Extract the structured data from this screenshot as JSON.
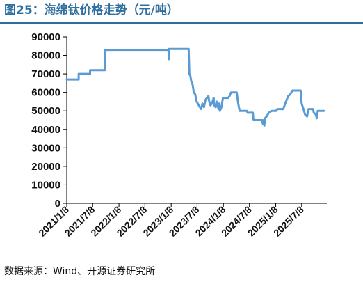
{
  "header": {
    "title": "图25：海绵钛价格走势（元/吨）"
  },
  "footer": {
    "source": "数据来源：Wind、开源证券研究所"
  },
  "colors": {
    "title": "#2f6f9f",
    "series_line": "#5b9bd5",
    "axis": "#000000"
  },
  "chart_data": {
    "type": "line",
    "title": "",
    "xlabel": "",
    "ylabel": "",
    "ylim": [
      0,
      90000
    ],
    "grid": false,
    "legend": "none",
    "y_ticks": [
      0,
      10000,
      20000,
      30000,
      40000,
      50000,
      60000,
      70000,
      80000,
      90000
    ],
    "x_ticks": [
      "2021/1/8",
      "2021/7/8",
      "2022/1/8",
      "2022/7/8",
      "2023/1/8",
      "2023/7/8",
      "2024/1/8",
      "2024/7/8",
      "2025/1/8",
      "2025/7/8"
    ],
    "xlim": [
      "2021-01-08",
      "2025-12-31"
    ],
    "series": [
      {
        "points": [
          [
            "2021-01-08",
            67000
          ],
          [
            "2021-04-01",
            67000
          ],
          [
            "2021-04-01",
            70000
          ],
          [
            "2021-06-20",
            70000
          ],
          [
            "2021-06-20",
            72000
          ],
          [
            "2021-10-01",
            72000
          ],
          [
            "2021-10-01",
            83000
          ],
          [
            "2022-12-20",
            83000
          ],
          [
            "2022-12-22",
            78000
          ],
          [
            "2022-12-24",
            83500
          ],
          [
            "2023-05-10",
            83500
          ],
          [
            "2023-05-15",
            70000
          ],
          [
            "2023-05-22",
            69000
          ],
          [
            "2023-05-28",
            66000
          ],
          [
            "2023-06-05",
            65000
          ],
          [
            "2023-06-15",
            60000
          ],
          [
            "2023-06-25",
            59000
          ],
          [
            "2023-07-05",
            55000
          ],
          [
            "2023-07-20",
            53000
          ],
          [
            "2023-08-05",
            51000
          ],
          [
            "2023-08-15",
            54000
          ],
          [
            "2023-08-25",
            52000
          ],
          [
            "2023-09-05",
            56000
          ],
          [
            "2023-09-15",
            57000
          ],
          [
            "2023-09-25",
            58000
          ],
          [
            "2023-10-01",
            55000
          ],
          [
            "2023-10-10",
            53000
          ],
          [
            "2023-10-20",
            54000
          ],
          [
            "2023-11-01",
            57000
          ],
          [
            "2023-11-05",
            53000
          ],
          [
            "2023-11-15",
            52000
          ],
          [
            "2023-11-22",
            55000
          ],
          [
            "2023-11-28",
            53000
          ],
          [
            "2023-12-05",
            51000
          ],
          [
            "2023-12-10",
            54000
          ],
          [
            "2023-12-15",
            50000
          ],
          [
            "2023-12-25",
            52000
          ],
          [
            "2024-01-05",
            57000
          ],
          [
            "2024-02-10",
            57000
          ],
          [
            "2024-02-20",
            58000
          ],
          [
            "2024-03-01",
            60000
          ],
          [
            "2024-04-10",
            60000
          ],
          [
            "2024-04-20",
            54000
          ],
          [
            "2024-05-01",
            50000
          ],
          [
            "2024-06-20",
            50000
          ],
          [
            "2024-06-25",
            49000
          ],
          [
            "2024-08-01",
            49000
          ],
          [
            "2024-08-05",
            45000
          ],
          [
            "2024-10-05",
            45000
          ],
          [
            "2024-10-10",
            43000
          ],
          [
            "2024-10-15",
            45000
          ],
          [
            "2024-10-20",
            42000
          ],
          [
            "2024-10-25",
            46000
          ],
          [
            "2024-11-05",
            47000
          ],
          [
            "2024-11-20",
            49000
          ],
          [
            "2024-12-10",
            50000
          ],
          [
            "2025-01-10",
            50000
          ],
          [
            "2025-01-20",
            51000
          ],
          [
            "2025-03-01",
            51000
          ],
          [
            "2025-03-20",
            55000
          ],
          [
            "2025-04-05",
            58000
          ],
          [
            "2025-04-20",
            59000
          ],
          [
            "2025-05-05",
            61000
          ],
          [
            "2025-07-01",
            61000
          ],
          [
            "2025-07-08",
            54000
          ],
          [
            "2025-07-20",
            51000
          ],
          [
            "2025-08-01",
            48000
          ],
          [
            "2025-08-15",
            47000
          ],
          [
            "2025-08-25",
            51000
          ],
          [
            "2025-09-25",
            51000
          ],
          [
            "2025-10-01",
            49000
          ],
          [
            "2025-10-15",
            48000
          ],
          [
            "2025-10-22",
            46000
          ],
          [
            "2025-10-29",
            50000
          ],
          [
            "2025-12-10",
            50000
          ]
        ]
      }
    ]
  }
}
